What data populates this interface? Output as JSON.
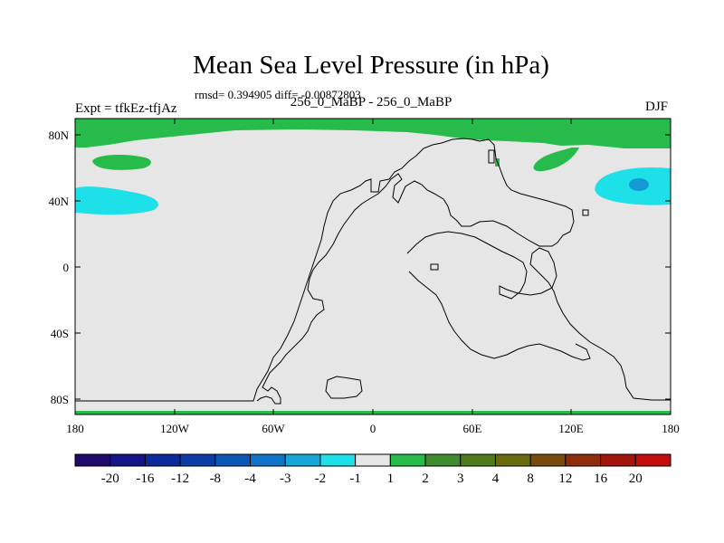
{
  "title": "Mean Sea Level Pressure (in hPa)",
  "stats": "rmsd= 0.394905 diff= -0.00872803",
  "experiment": "Expt = tfkEz-tfjAz",
  "experiment_label": "256_0_MaBP - 256_0_MaBP",
  "season": "DJF",
  "axes": {
    "y_ticks": [
      "80N",
      "40N",
      "0",
      "40S",
      "80S"
    ],
    "x_ticks": [
      "180",
      "120W",
      "60W",
      "0",
      "60E",
      "120E",
      "180"
    ]
  },
  "colorbar": {
    "labels": [
      "-20",
      "-16",
      "-12",
      "-8",
      "-4",
      "-3",
      "-2",
      "-1",
      "1",
      "2",
      "3",
      "4",
      "8",
      "12",
      "16",
      "20"
    ],
    "colors": [
      "#1f0a6b",
      "#151589",
      "#0b2a9c",
      "#0c3da6",
      "#0b57b8",
      "#0f74c8",
      "#16a7d8",
      "#1ee0e8",
      "#e6e6e6",
      "#27bb4c",
      "#3e8a2c",
      "#4f7b1c",
      "#6a6b0e",
      "#7a4a0c",
      "#8e2d0a",
      "#a3150c",
      "#c50c0c"
    ]
  },
  "colors": {
    "neutral": "#e6e6e6",
    "green": "#27bb4c",
    "cyan": "#1ee0e8",
    "blue": "#139ad5"
  }
}
